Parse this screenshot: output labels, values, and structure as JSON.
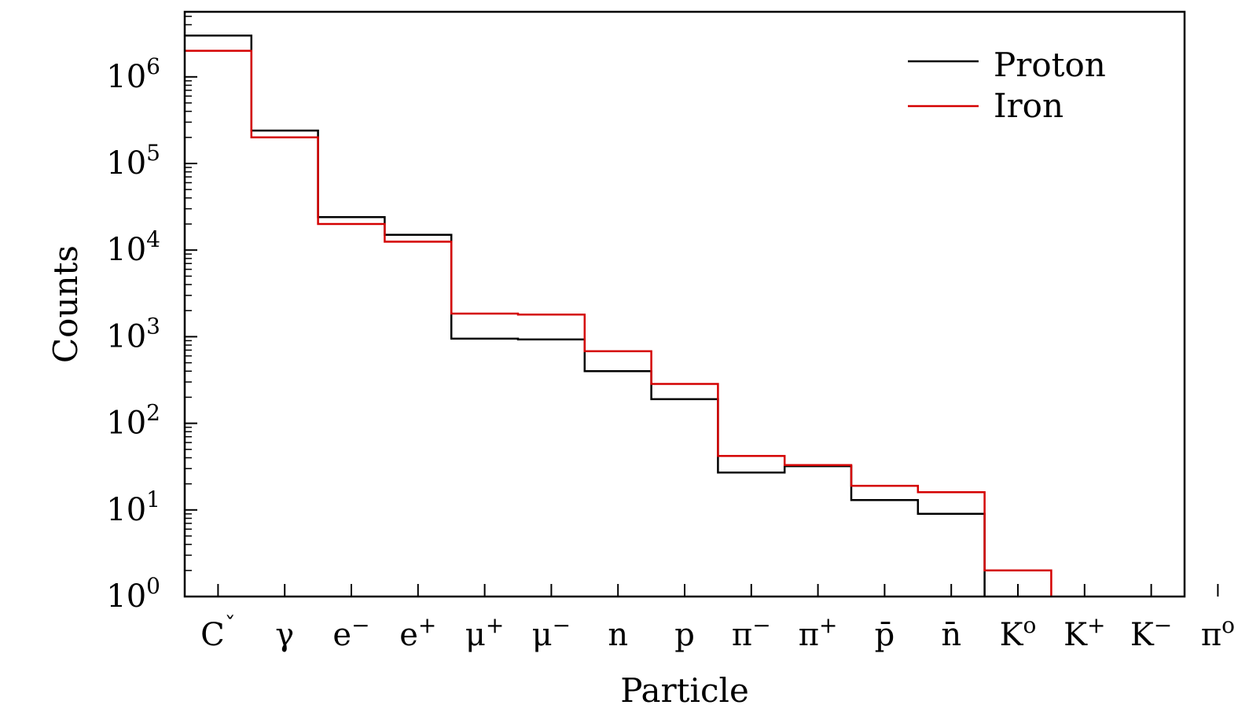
{
  "chart_data": {
    "type": "line",
    "style": "step histogram",
    "xlabel": "Particle",
    "ylabel": "Counts",
    "yscale": "log",
    "ylim": [
      1,
      10000000
    ],
    "y_ticks": [
      {
        "base": "10",
        "exp": "0"
      },
      {
        "base": "10",
        "exp": "1"
      },
      {
        "base": "10",
        "exp": "2"
      },
      {
        "base": "10",
        "exp": "3"
      },
      {
        "base": "10",
        "exp": "4"
      },
      {
        "base": "10",
        "exp": "5"
      },
      {
        "base": "10",
        "exp": "6"
      }
    ],
    "categories": [
      {
        "main": "C",
        "sup": "ˇ"
      },
      {
        "main": "γ",
        "sup": ""
      },
      {
        "main": "e",
        "sup": "−"
      },
      {
        "main": "e",
        "sup": "+"
      },
      {
        "main": "μ",
        "sup": "+"
      },
      {
        "main": "μ",
        "sup": "−"
      },
      {
        "main": "n",
        "sup": ""
      },
      {
        "main": "p",
        "sup": ""
      },
      {
        "main": "π",
        "sup": "−"
      },
      {
        "main": "π",
        "sup": "+"
      },
      {
        "main": "p̄",
        "sup": ""
      },
      {
        "main": "n̄",
        "sup": ""
      },
      {
        "main": "K",
        "sup": "o"
      },
      {
        "main": "K",
        "sup": "+"
      },
      {
        "main": "K",
        "sup": "−"
      },
      {
        "main": "π",
        "sup": "o"
      }
    ],
    "series": [
      {
        "name": "Proton",
        "color": "#000000",
        "values": [
          3000000,
          240000,
          24000,
          15000,
          950,
          930,
          400,
          190,
          27,
          32,
          13,
          9,
          null,
          null,
          null,
          null
        ]
      },
      {
        "name": "Iron",
        "color": "#d40000",
        "values": [
          2000000,
          200000,
          20000,
          12500,
          1850,
          1800,
          680,
          285,
          42,
          33,
          19,
          16,
          2,
          null,
          null,
          null
        ]
      }
    ],
    "legend": {
      "position": "top-right"
    },
    "grid": false
  }
}
